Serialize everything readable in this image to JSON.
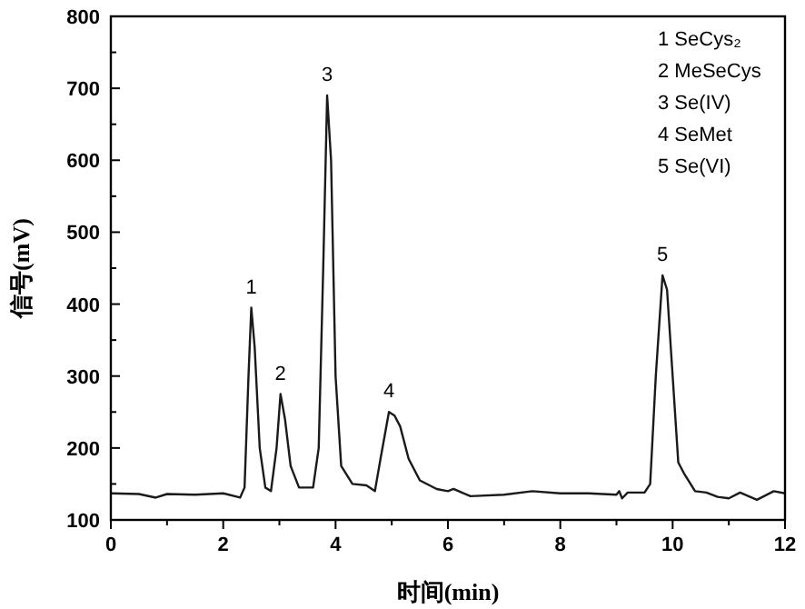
{
  "chart_data": {
    "type": "line",
    "xlabel": "时间(min)",
    "ylabel": "信号(mV)",
    "xlim": [
      0,
      12
    ],
    "xticks": [
      0,
      2,
      4,
      6,
      8,
      10,
      12
    ],
    "ylim": [
      100,
      800
    ],
    "yticks": [
      100,
      200,
      300,
      400,
      500,
      600,
      700,
      800
    ],
    "series": [
      {
        "color": "#1a1a1a",
        "x": [
          0,
          0.5,
          0.8,
          1,
          1.5,
          2,
          2.3,
          2.38,
          2.45,
          2.5,
          2.56,
          2.65,
          2.75,
          2.85,
          2.95,
          3.02,
          3.1,
          3.2,
          3.35,
          3.6,
          3.7,
          3.78,
          3.85,
          3.92,
          4.0,
          4.1,
          4.3,
          4.55,
          4.7,
          4.8,
          4.95,
          5.05,
          5.15,
          5.3,
          5.5,
          5.8,
          6.0,
          6.1,
          6.4,
          7,
          7.5,
          8,
          8.5,
          9.0,
          9.05,
          9.1,
          9.2,
          9.5,
          9.6,
          9.7,
          9.82,
          9.9,
          10.0,
          10.1,
          10.2,
          10.4,
          10.6,
          10.8,
          11.0,
          11.2,
          11.5,
          11.8,
          12.0
        ],
        "values": [
          137,
          136,
          131,
          136,
          135,
          137,
          131,
          145,
          300,
          395,
          340,
          200,
          145,
          140,
          200,
          275,
          240,
          175,
          145,
          145,
          200,
          450,
          690,
          600,
          300,
          175,
          150,
          148,
          140,
          185,
          250,
          245,
          230,
          185,
          155,
          143,
          140,
          143,
          133,
          135,
          140,
          137,
          137,
          135,
          140,
          130,
          138,
          138,
          150,
          300,
          440,
          420,
          300,
          180,
          165,
          140,
          138,
          132,
          130,
          138,
          128,
          140,
          137
        ]
      }
    ],
    "annotations": [
      {
        "text": "1",
        "x": 2.5,
        "y": 395
      },
      {
        "text": "2",
        "x": 3.02,
        "y": 275
      },
      {
        "text": "3",
        "x": 3.85,
        "y": 690
      },
      {
        "text": "4",
        "x": 4.95,
        "y": 250
      },
      {
        "text": "5",
        "x": 9.82,
        "y": 440
      },
      "1 SeCys₂",
      "2 MeSeCys",
      "3 Se(IV)",
      "4 SeMet",
      "5 Se(VI)"
    ]
  }
}
